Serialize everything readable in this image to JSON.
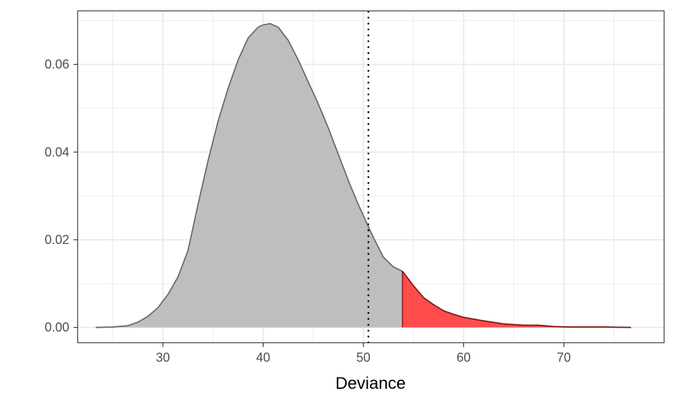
{
  "chart_data": {
    "type": "area",
    "title": "",
    "xlabel": "Deviance",
    "ylabel": "",
    "xlim": [
      21.5,
      80
    ],
    "ylim": [
      -0.0035,
      0.0722
    ],
    "x_ticks": [
      30,
      40,
      50,
      60,
      70
    ],
    "x_tick_labels": [
      "30",
      "40",
      "50",
      "60",
      "70"
    ],
    "y_ticks": [
      0.0,
      0.02,
      0.04,
      0.06
    ],
    "y_tick_labels": [
      "0.00",
      "0.02",
      "0.04",
      "0.06"
    ],
    "grid": true,
    "legend": "none",
    "density": {
      "x": [
        23.3,
        25,
        26.5,
        27.5,
        28.5,
        29.5,
        30.5,
        31.5,
        32.5,
        33.5,
        34.5,
        35.5,
        36.5,
        37.5,
        38.5,
        39.5,
        40,
        40.7,
        41.5,
        42.5,
        43.5,
        44.5,
        45.5,
        46.5,
        47.5,
        48.5,
        49.5,
        50.5,
        51,
        52,
        53,
        53.9,
        55,
        56,
        57,
        58,
        59,
        60,
        62,
        64,
        66,
        67.5,
        69,
        70.5,
        72,
        74,
        76.7
      ],
      "y": [
        0.0,
        0.0001,
        0.0004,
        0.0012,
        0.0025,
        0.0045,
        0.0075,
        0.0115,
        0.0175,
        0.028,
        0.038,
        0.047,
        0.0545,
        0.061,
        0.066,
        0.0685,
        0.069,
        0.0693,
        0.0685,
        0.0655,
        0.061,
        0.056,
        0.051,
        0.0455,
        0.0395,
        0.0335,
        0.028,
        0.023,
        0.0205,
        0.016,
        0.0138,
        0.0128,
        0.0095,
        0.0068,
        0.0052,
        0.0038,
        0.003,
        0.0023,
        0.0015,
        0.0008,
        0.0005,
        0.0005,
        0.0002,
        0.0001,
        0.0001,
        0.0001,
        0.0
      ],
      "fill_color": "#bebebe",
      "line_color": "#696969"
    },
    "shaded_tail": {
      "from_x": 53.9,
      "to_x": 76.7,
      "fill_color": "#ff4c4c",
      "line_color": "#8b0000"
    },
    "reference_line": {
      "x": 50.5,
      "style": "dotted",
      "color": "#000000"
    }
  }
}
